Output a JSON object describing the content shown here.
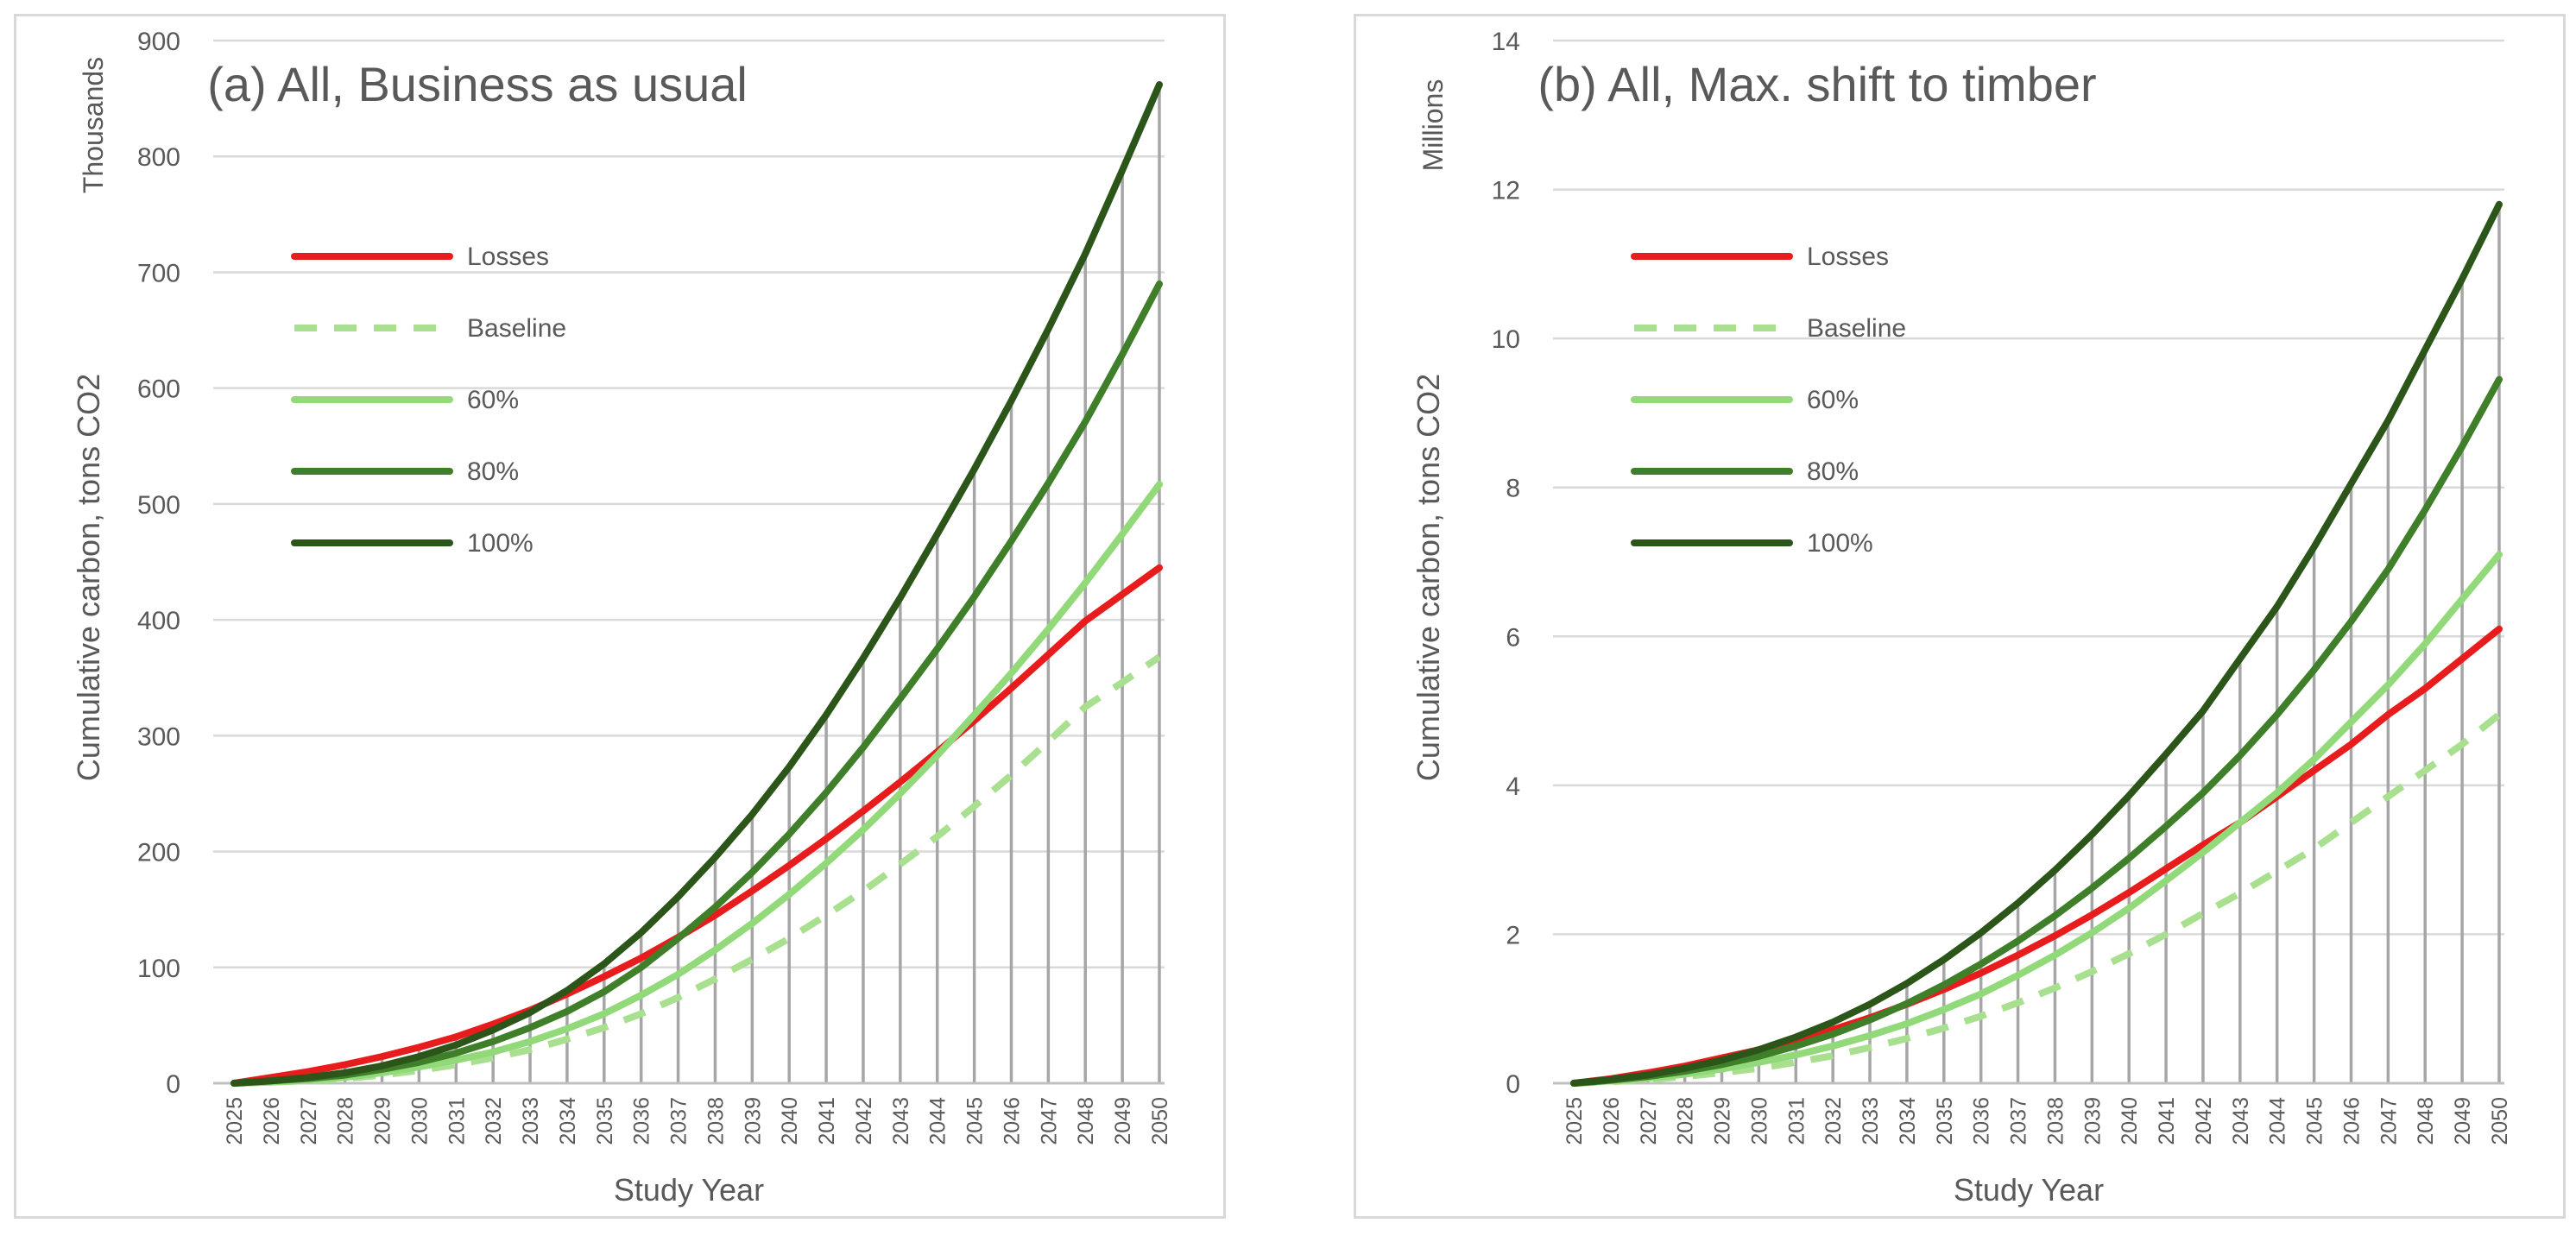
{
  "chart_data": [
    {
      "type": "line",
      "title": "(a) All, Business as usual",
      "xlabel": "Study Year",
      "ylabel": "Cumulative carbon, tons CO2",
      "units_label": "Thousands",
      "ylim": [
        0,
        900
      ],
      "yticks": [
        "0",
        "100",
        "200",
        "300",
        "400",
        "500",
        "600",
        "700",
        "800",
        "900"
      ],
      "grid": true,
      "legend_position": "top-left",
      "drop_lines": true,
      "x": [
        2025,
        2026,
        2027,
        2028,
        2029,
        2030,
        2031,
        2032,
        2033,
        2034,
        2035,
        2036,
        2037,
        2038,
        2039,
        2040,
        2041,
        2042,
        2043,
        2044,
        2045,
        2046,
        2047,
        2048,
        2049,
        2050
      ],
      "series": [
        {
          "name": "Losses",
          "color": "#e81c1c",
          "style": "solid",
          "values": [
            0,
            5,
            10,
            16,
            23,
            31,
            40,
            51,
            63,
            77,
            92,
            108,
            126,
            145,
            166,
            188,
            211,
            235,
            260,
            286,
            313,
            341,
            370,
            399,
            422,
            445
          ]
        },
        {
          "name": "Baseline",
          "color": "#a8e08f",
          "style": "dashed",
          "values": [
            0,
            1,
            2,
            4,
            7,
            11,
            16,
            22,
            29,
            38,
            48,
            60,
            74,
            90,
            107,
            125,
            145,
            166,
            189,
            213,
            239,
            266,
            295,
            325,
            346,
            368
          ]
        },
        {
          "name": "60%",
          "color": "#92d97a",
          "style": "solid",
          "values": [
            0,
            1,
            3,
            5,
            9,
            14,
            20,
            27,
            36,
            47,
            60,
            76,
            94,
            115,
            138,
            163,
            190,
            219,
            250,
            283,
            318,
            354,
            392,
            432,
            474,
            517
          ]
        },
        {
          "name": "80%",
          "color": "#3f7f2a",
          "style": "solid",
          "values": [
            0,
            2,
            4,
            7,
            12,
            18,
            26,
            36,
            48,
            62,
            79,
            100,
            125,
            152,
            182,
            215,
            251,
            290,
            332,
            375,
            420,
            468,
            518,
            571,
            629,
            690
          ]
        },
        {
          "name": "100%",
          "color": "#2b5519",
          "style": "solid",
          "values": [
            0,
            2,
            5,
            9,
            15,
            23,
            33,
            46,
            61,
            80,
            103,
            130,
            161,
            195,
            232,
            273,
            318,
            367,
            419,
            474,
            530,
            589,
            651,
            716,
            788,
            862
          ]
        }
      ]
    },
    {
      "type": "line",
      "title": "(b) All, Max. shift to timber",
      "xlabel": "Study Year",
      "ylabel": "Cumulative carbon, tons CO2",
      "units_label": "Millions",
      "ylim": [
        0,
        14
      ],
      "yticks": [
        "0",
        "2",
        "4",
        "6",
        "8",
        "10",
        "12",
        "14"
      ],
      "grid": true,
      "legend_position": "top-left",
      "drop_lines": true,
      "x": [
        2025,
        2026,
        2027,
        2028,
        2029,
        2030,
        2031,
        2032,
        2033,
        2034,
        2035,
        2036,
        2037,
        2038,
        2039,
        2040,
        2041,
        2042,
        2043,
        2044,
        2045,
        2046,
        2047,
        2048,
        2049,
        2050
      ],
      "series": [
        {
          "name": "Losses",
          "color": "#e81c1c",
          "style": "solid",
          "values": [
            0,
            0.06,
            0.14,
            0.23,
            0.34,
            0.45,
            0.58,
            0.72,
            0.88,
            1.06,
            1.26,
            1.48,
            1.72,
            1.98,
            2.26,
            2.56,
            2.88,
            3.2,
            3.5,
            3.85,
            4.2,
            4.55,
            4.95,
            5.3,
            5.7,
            6.1
          ]
        },
        {
          "name": "Baseline",
          "color": "#a8e08f",
          "style": "dashed",
          "values": [
            0,
            0.02,
            0.05,
            0.09,
            0.14,
            0.2,
            0.28,
            0.37,
            0.48,
            0.6,
            0.74,
            0.9,
            1.08,
            1.28,
            1.5,
            1.74,
            2.0,
            2.28,
            2.55,
            2.85,
            3.15,
            3.5,
            3.85,
            4.2,
            4.55,
            4.95
          ]
        },
        {
          "name": "60%",
          "color": "#92d97a",
          "style": "solid",
          "values": [
            0,
            0.03,
            0.07,
            0.12,
            0.19,
            0.28,
            0.38,
            0.5,
            0.64,
            0.8,
            0.99,
            1.2,
            1.45,
            1.72,
            2.02,
            2.35,
            2.72,
            3.1,
            3.5,
            3.9,
            4.35,
            4.85,
            5.35,
            5.9,
            6.5,
            7.1
          ]
        },
        {
          "name": "80%",
          "color": "#3f7f2a",
          "style": "solid",
          "values": [
            0,
            0.04,
            0.09,
            0.16,
            0.25,
            0.36,
            0.5,
            0.66,
            0.85,
            1.07,
            1.32,
            1.6,
            1.91,
            2.25,
            2.62,
            3.02,
            3.45,
            3.9,
            4.4,
            4.95,
            5.55,
            6.2,
            6.9,
            7.7,
            8.55,
            9.45
          ]
        },
        {
          "name": "100%",
          "color": "#2b5519",
          "style": "solid",
          "values": [
            0,
            0.05,
            0.11,
            0.2,
            0.31,
            0.45,
            0.62,
            0.82,
            1.06,
            1.34,
            1.66,
            2.02,
            2.42,
            2.86,
            3.34,
            3.86,
            4.42,
            5.0,
            5.7,
            6.4,
            7.2,
            8.05,
            8.9,
            9.85,
            10.8,
            11.8
          ]
        }
      ]
    }
  ]
}
